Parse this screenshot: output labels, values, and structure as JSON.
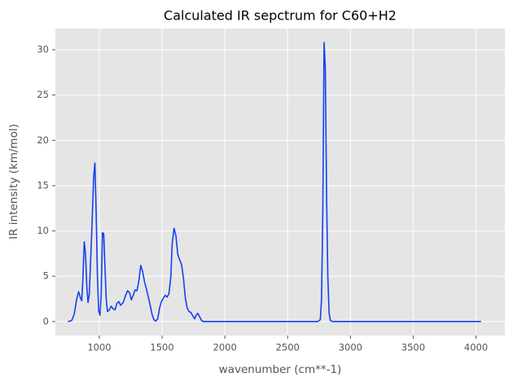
{
  "chart_data": {
    "type": "line",
    "title": "Calculated IR sepctrum for C60+H2",
    "x_label": "wavenumber (cm**-1)",
    "y_label": "IR intensity (km/mol)",
    "x": [
      750,
      780,
      800,
      820,
      835,
      850,
      860,
      870,
      880,
      890,
      900,
      910,
      920,
      940,
      955,
      965,
      975,
      985,
      995,
      1005,
      1015,
      1025,
      1035,
      1045,
      1055,
      1065,
      1080,
      1095,
      1110,
      1125,
      1140,
      1155,
      1170,
      1190,
      1210,
      1225,
      1240,
      1255,
      1270,
      1285,
      1300,
      1315,
      1330,
      1345,
      1360,
      1375,
      1390,
      1405,
      1420,
      1435,
      1450,
      1465,
      1480,
      1495,
      1510,
      1525,
      1540,
      1555,
      1570,
      1580,
      1595,
      1610,
      1625,
      1640,
      1655,
      1670,
      1685,
      1700,
      1715,
      1730,
      1745,
      1760,
      1770,
      1785,
      1800,
      1815,
      1830,
      2000,
      2500,
      2740,
      2760,
      2770,
      2780,
      2790,
      2800,
      2810,
      2820,
      2830,
      2840,
      2860,
      3500,
      4040
    ],
    "values": [
      0,
      0.1,
      0.8,
      2.5,
      3.3,
      2.6,
      2.3,
      5,
      8.8,
      7.5,
      4,
      2.1,
      3,
      10,
      16,
      17.5,
      12,
      5,
      1.2,
      0.7,
      3,
      9.8,
      9.7,
      6,
      2.5,
      1.1,
      1.3,
      1.7,
      1.4,
      1.3,
      2,
      2.2,
      1.8,
      2.1,
      2.9,
      3.4,
      3.2,
      2.4,
      2.9,
      3.5,
      3.4,
      4.5,
      6.2,
      5.5,
      4.4,
      3.6,
      2.7,
      1.8,
      0.8,
      0.2,
      0.05,
      0.3,
      1.5,
      2.2,
      2.6,
      2.9,
      2.7,
      3.1,
      5,
      8.5,
      10.3,
      9.5,
      7.4,
      6.8,
      6.3,
      4.8,
      2.6,
      1.5,
      1.1,
      1,
      0.6,
      0.3,
      0.7,
      0.9,
      0.5,
      0.1,
      0,
      0,
      0,
      0,
      0.2,
      2.5,
      12,
      30.8,
      28,
      14,
      5,
      1,
      0.1,
      0,
      0,
      0
    ],
    "color": "#1440f0",
    "xlim": [
      650,
      4230
    ],
    "ylim": [
      -1.54,
      32.34
    ],
    "xticks": [
      1000,
      1500,
      2000,
      2500,
      3000,
      3500,
      4000
    ],
    "yticks": [
      0,
      5,
      10,
      15,
      20,
      25,
      30
    ],
    "grid": true,
    "background": "#e5e5e5"
  }
}
